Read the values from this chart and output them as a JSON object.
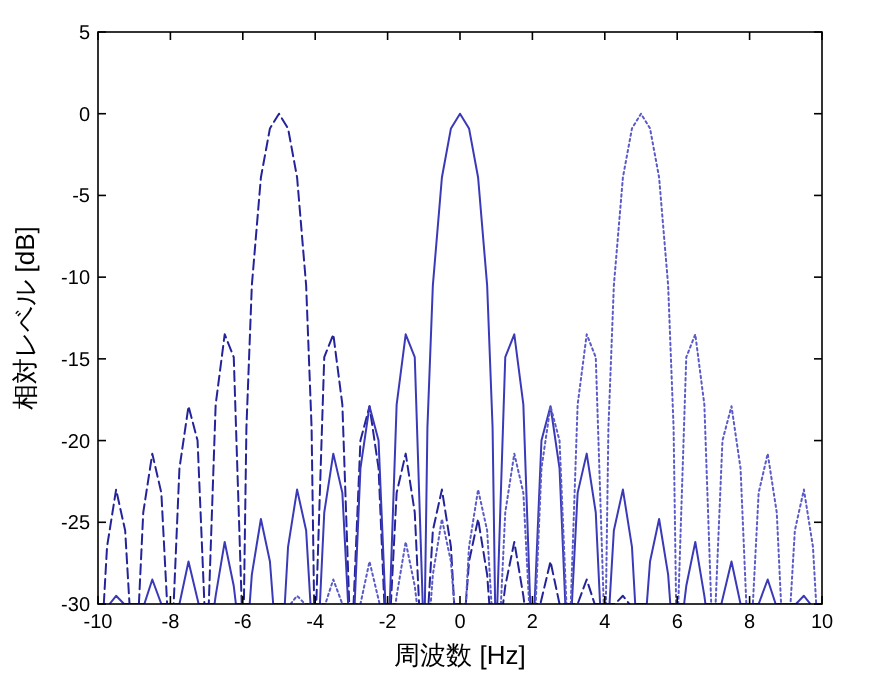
{
  "chart_data": {
    "type": "line",
    "xlabel": "周波数 [Hz]",
    "ylabel": "相対レベル [dB]",
    "xlim": [
      -10,
      10
    ],
    "ylim": [
      -30,
      5
    ],
    "xticks": [
      -10,
      -8,
      -6,
      -4,
      -2,
      0,
      2,
      4,
      6,
      8,
      10
    ],
    "yticks": [
      -30,
      -25,
      -20,
      -15,
      -10,
      -5,
      0,
      5
    ],
    "series": [
      {
        "color": "#24249a",
        "line_style": "dashed",
        "x": [
          -9.84,
          -9.75,
          -9.5,
          -9.25,
          -9.13,
          -8.87,
          -8.75,
          -8.5,
          -8.25,
          -8.09,
          -7.91,
          -7.75,
          -7.5,
          -7.25,
          -7.06,
          -6.94,
          -6.75,
          -6.5,
          -6.25,
          -6.03,
          -5.97,
          -5.9,
          -5.75,
          -5.5,
          -5.25,
          -5,
          -4.75,
          -4.5,
          -4.25,
          -4.1,
          -4.03,
          -3.97,
          -3.75,
          -3.5,
          -3.25,
          -3.06,
          -2.94,
          -2.75,
          -2.5,
          -2.25,
          -2.09,
          -1.91,
          -1.75,
          -1.5,
          -1.25,
          -1.13,
          -0.87,
          -0.75,
          -0.5,
          -0.25,
          -0.16,
          0.16,
          0.25,
          0.5,
          0.75,
          0.81,
          1.19,
          1.25,
          1.5,
          1.75,
          1.78,
          2.22,
          2.5,
          2.75,
          3.25,
          3.5,
          3.72,
          4.28,
          4.5,
          4.68
        ],
        "values": [
          -30,
          -26.5,
          -23.0,
          -25.5,
          -30,
          -30,
          -24.4,
          -20.8,
          -23.2,
          -30,
          -30,
          -21.7,
          -17.9,
          -20.0,
          -30,
          -30,
          -17.8,
          -13.5,
          -14.9,
          -30,
          -30,
          -19.2,
          -10.5,
          -3.9,
          -0.9,
          0,
          -0.9,
          -3.9,
          -10.5,
          -19.2,
          -30,
          -30,
          -14.9,
          -13.5,
          -17.8,
          -30,
          -30,
          -20.0,
          -17.9,
          -21.7,
          -30,
          -30,
          -23.2,
          -20.8,
          -24.4,
          -30,
          -30,
          -25.5,
          -23.0,
          -26.5,
          -30,
          -30,
          -27.4,
          -24.8,
          -28.2,
          -30,
          -30,
          -28.9,
          -26.2,
          -29.5,
          -30,
          -30,
          -27.4,
          -30,
          -30,
          -28.5,
          -30,
          -30,
          -29.5,
          -30
        ]
      },
      {
        "color": "#3a3ab8",
        "line_style": "solid",
        "x": [
          -9.68,
          -9.5,
          -9.28,
          -8.72,
          -8.5,
          -8.25,
          -7.75,
          -7.5,
          -7.22,
          -6.78,
          -6.75,
          -6.5,
          -6.25,
          -6.19,
          -5.81,
          -5.75,
          -5.5,
          -5.25,
          -5.16,
          -4.84,
          -4.75,
          -4.5,
          -4.25,
          -4.13,
          -3.87,
          -3.75,
          -3.5,
          -3.25,
          -3.09,
          -2.91,
          -2.75,
          -2.5,
          -2.25,
          -2.06,
          -1.94,
          -1.75,
          -1.5,
          -1.25,
          -1.03,
          -0.97,
          -0.9,
          -0.75,
          -0.5,
          -0.25,
          0,
          0.25,
          0.5,
          0.75,
          0.9,
          0.97,
          1.03,
          1.25,
          1.5,
          1.75,
          1.94,
          2.06,
          2.25,
          2.5,
          2.75,
          2.91,
          3.09,
          3.25,
          3.5,
          3.75,
          3.87,
          4.13,
          4.25,
          4.5,
          4.75,
          4.84,
          5.16,
          5.25,
          5.5,
          5.75,
          5.81,
          6.19,
          6.25,
          6.5,
          6.75,
          6.78,
          7.22,
          7.5,
          7.75,
          8.25,
          8.5,
          8.72,
          9.28,
          9.5,
          9.68
        ],
        "values": [
          -30,
          -29.5,
          -30,
          -30,
          -28.5,
          -30,
          -30,
          -27.4,
          -30,
          -30,
          -29.5,
          -26.2,
          -28.9,
          -30,
          -30,
          -28.2,
          -24.8,
          -27.4,
          -30,
          -30,
          -26.5,
          -23.0,
          -25.5,
          -30,
          -30,
          -24.4,
          -20.8,
          -23.2,
          -30,
          -30,
          -21.7,
          -17.9,
          -20.0,
          -30,
          -30,
          -17.8,
          -13.5,
          -14.9,
          -30,
          -30,
          -19.2,
          -10.5,
          -3.9,
          -0.9,
          0,
          -0.9,
          -3.9,
          -10.5,
          -19.2,
          -30,
          -30,
          -14.9,
          -13.5,
          -17.8,
          -30,
          -30,
          -20.0,
          -17.9,
          -21.7,
          -30,
          -30,
          -23.2,
          -20.8,
          -24.4,
          -30,
          -30,
          -25.5,
          -23.0,
          -26.5,
          -30,
          -30,
          -27.4,
          -24.8,
          -28.2,
          -30,
          -30,
          -28.9,
          -26.2,
          -29.5,
          -30,
          -30,
          -27.4,
          -30,
          -30,
          -28.5,
          -30,
          -30,
          -29.5,
          -30
        ]
      },
      {
        "color": "#5a5ac8",
        "line_style": "dotted",
        "x": [
          -4.68,
          -4.5,
          -4.28,
          -3.72,
          -3.5,
          -3.25,
          -2.75,
          -2.5,
          -2.22,
          -1.78,
          -1.75,
          -1.5,
          -1.25,
          -1.19,
          -0.81,
          -0.75,
          -0.5,
          -0.25,
          -0.16,
          0.16,
          0.25,
          0.5,
          0.75,
          0.87,
          1.13,
          1.25,
          1.5,
          1.75,
          1.91,
          2.09,
          2.25,
          2.5,
          2.75,
          2.94,
          3.06,
          3.25,
          3.5,
          3.75,
          3.97,
          4.03,
          4.1,
          4.25,
          4.5,
          4.75,
          5,
          5.25,
          5.5,
          5.75,
          5.9,
          5.97,
          6.03,
          6.25,
          6.5,
          6.75,
          6.94,
          7.06,
          7.25,
          7.5,
          7.75,
          7.91,
          8.09,
          8.25,
          8.5,
          8.75,
          8.87,
          9.13,
          9.25,
          9.5,
          9.75,
          9.84
        ],
        "values": [
          -30,
          -29.5,
          -30,
          -30,
          -28.5,
          -30,
          -30,
          -27.4,
          -30,
          -30,
          -29.5,
          -26.2,
          -28.9,
          -30,
          -30,
          -28.2,
          -24.8,
          -27.4,
          -30,
          -30,
          -26.5,
          -23.0,
          -25.5,
          -30,
          -30,
          -24.4,
          -20.8,
          -23.2,
          -30,
          -30,
          -21.7,
          -17.9,
          -20.0,
          -30,
          -30,
          -17.8,
          -13.5,
          -14.9,
          -30,
          -30,
          -19.2,
          -10.5,
          -3.9,
          -0.9,
          0,
          -0.9,
          -3.9,
          -10.5,
          -19.2,
          -30,
          -30,
          -14.9,
          -13.5,
          -17.8,
          -30,
          -30,
          -20.0,
          -17.9,
          -21.7,
          -30,
          -30,
          -23.2,
          -20.8,
          -24.4,
          -30,
          -30,
          -25.5,
          -23.0,
          -26.5,
          -30
        ]
      }
    ]
  }
}
